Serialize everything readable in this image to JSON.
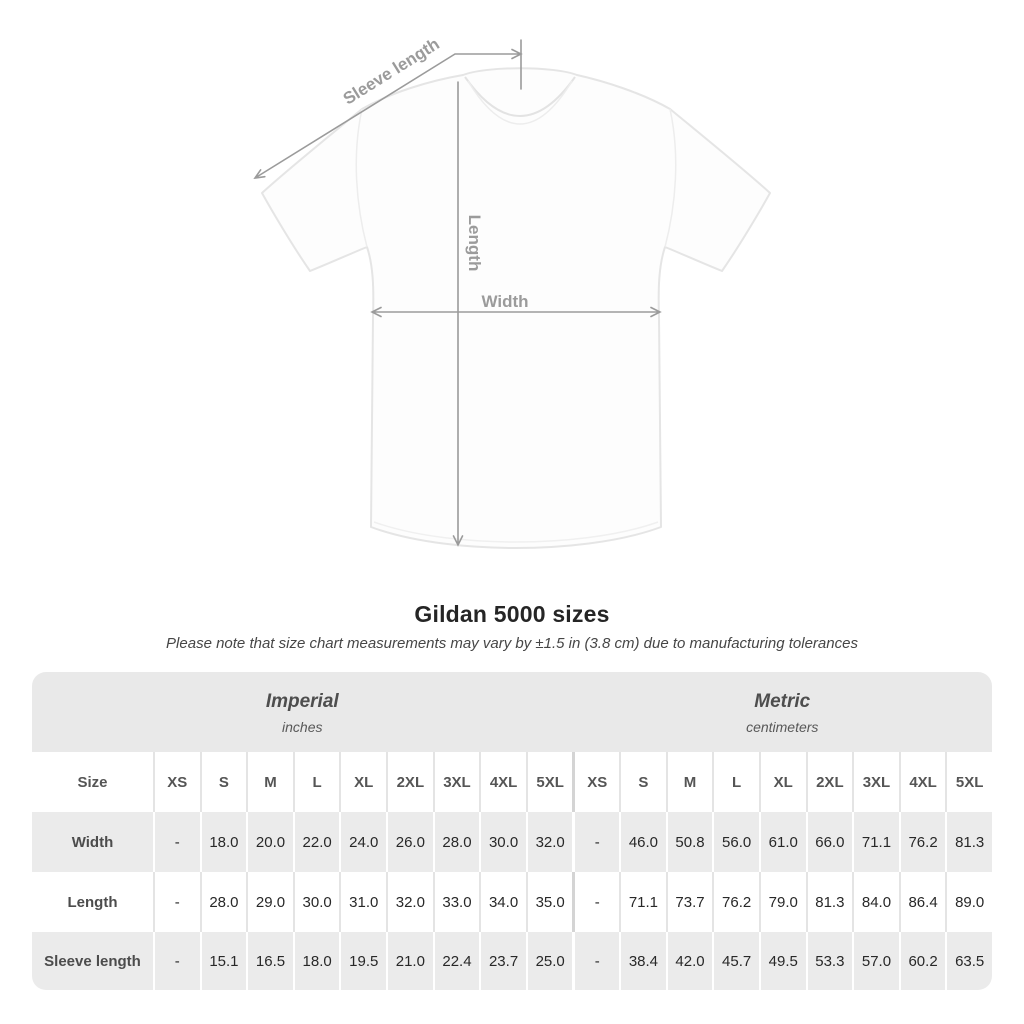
{
  "title": "Gildan 5000 sizes",
  "subtitle": "Please note that size chart measurements may vary by ±1.5 in (3.8 cm) due to manufacturing tolerances",
  "diagram": {
    "sleeve_length_label": "Sleeve length",
    "length_label": "Length",
    "width_label": "Width"
  },
  "table": {
    "groups": [
      {
        "label": "Imperial",
        "sublabel": "inches"
      },
      {
        "label": "Metric",
        "sublabel": "centimeters"
      }
    ],
    "size_header": "Size",
    "columns": [
      "XS",
      "S",
      "M",
      "L",
      "XL",
      "2XL",
      "3XL",
      "4XL",
      "5XL"
    ],
    "rows": [
      {
        "label": "Width",
        "imperial": [
          "-",
          "18.0",
          "20.0",
          "22.0",
          "24.0",
          "26.0",
          "28.0",
          "30.0",
          "32.0"
        ],
        "metric": [
          "-",
          "46.0",
          "50.8",
          "56.0",
          "61.0",
          "66.0",
          "71.1",
          "76.2",
          "81.3"
        ]
      },
      {
        "label": "Length",
        "imperial": [
          "-",
          "28.0",
          "29.0",
          "30.0",
          "31.0",
          "32.0",
          "33.0",
          "34.0",
          "35.0"
        ],
        "metric": [
          "-",
          "71.1",
          "73.7",
          "76.2",
          "79.0",
          "81.3",
          "84.0",
          "86.4",
          "89.0"
        ]
      },
      {
        "label": "Sleeve length",
        "imperial": [
          "-",
          "15.1",
          "16.5",
          "18.0",
          "19.5",
          "21.0",
          "22.4",
          "23.7",
          "25.0"
        ],
        "metric": [
          "-",
          "38.4",
          "42.0",
          "45.7",
          "49.5",
          "53.3",
          "57.0",
          "60.2",
          "63.5"
        ]
      }
    ]
  },
  "colors": {
    "table_band": "#e9e9e9",
    "row_stripe": "#ebebeb",
    "diagram_gray": "#9b9b9b",
    "title_text": "#252525"
  }
}
